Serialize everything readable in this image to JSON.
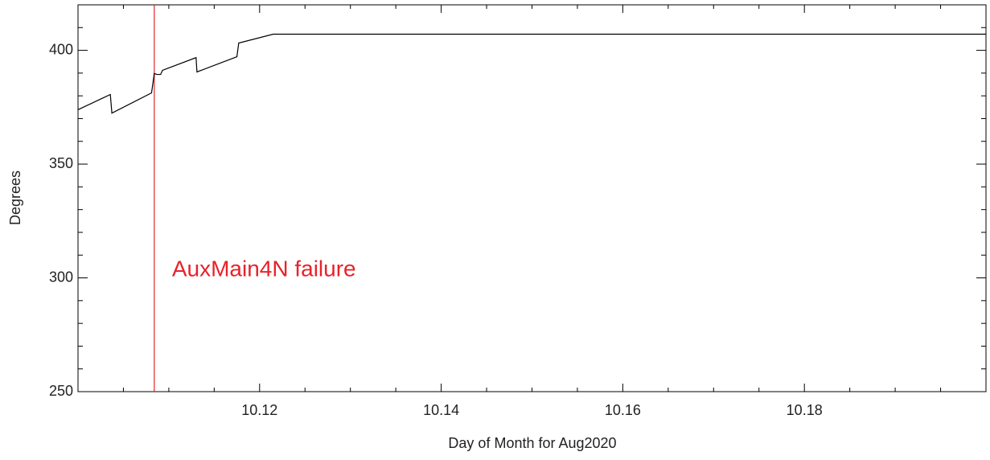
{
  "chart_data": {
    "type": "line",
    "xlabel": "Day of Month for Aug2020",
    "ylabel": "Degrees",
    "x": [
      10.1,
      10.10356,
      10.10373,
      10.1081,
      10.1084,
      10.1087,
      10.1091,
      10.1093,
      10.113,
      10.1131,
      10.1175,
      10.1177,
      10.1215,
      10.2
    ],
    "series": [
      {
        "name": "Degrees",
        "color": "#000000",
        "values": [
          373.9,
          380.6,
          372.4,
          381.3,
          389.8,
          389.4,
          389.4,
          391.2,
          396.8,
          390.5,
          397.2,
          403.2,
          407.1,
          407.1
        ]
      }
    ],
    "xlim": [
      10.1,
      10.2
    ],
    "ylim": [
      250,
      420
    ],
    "xticks": [
      10.12,
      10.14,
      10.16,
      10.18
    ],
    "yticks": [
      250,
      300,
      350,
      400
    ],
    "xminorticks": [
      10.105,
      10.11,
      10.115,
      10.125,
      10.13,
      10.135,
      10.145,
      10.15,
      10.155,
      10.165,
      10.17,
      10.175,
      10.185,
      10.19,
      10.195
    ],
    "yminorticks": [
      260,
      270,
      280,
      290,
      310,
      320,
      330,
      340,
      360,
      370,
      380,
      390,
      410
    ],
    "annotations": [
      {
        "x": 10.1084,
        "text": "AuxMain4N failure",
        "color": "#e8222a"
      }
    ],
    "grid": false
  }
}
